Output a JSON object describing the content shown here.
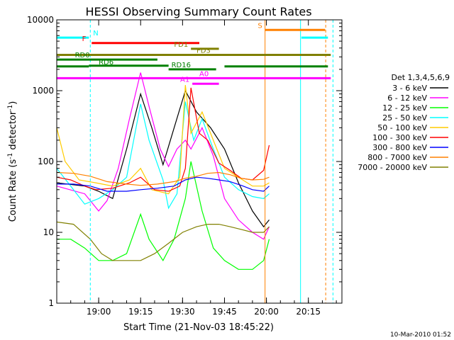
{
  "chart_data": {
    "type": "line",
    "title": "HESSI Observing Summary Count Rates",
    "xlabel": "Start Time (21-Nov-03 18:45:22)",
    "ylabel_main": "Count Rate (s",
    "ylabel_sup": "-1",
    "ylabel_mid": " detector",
    "ylabel_sup2": "-1",
    "ylabel_end": ")",
    "yscale": "log",
    "xlim": [
      0,
      102
    ],
    "ylim": [
      1,
      10000
    ],
    "x_unit": "minutes since 18:45",
    "x_ticks": [
      {
        "x": 15,
        "label": "19:00"
      },
      {
        "x": 30,
        "label": "19:15"
      },
      {
        "x": 45,
        "label": "19:30"
      },
      {
        "x": 60,
        "label": "19:45"
      },
      {
        "x": 75,
        "label": "20:00"
      },
      {
        "x": 90,
        "label": "20:15"
      }
    ],
    "y_ticks": [
      {
        "y": 1,
        "label": "1"
      },
      {
        "y": 10,
        "label": "10"
      },
      {
        "y": 100,
        "label": "100"
      },
      {
        "y": 1000,
        "label": "1000"
      },
      {
        "y": 10000,
        "label": "10000"
      }
    ],
    "legend_title": "Det 1,3,4,5,6,9",
    "legend_position": "right",
    "series": [
      {
        "name": "3 - 6 keV",
        "color": "#000000",
        "points": [
          [
            0,
            50
          ],
          [
            10,
            45
          ],
          [
            15,
            38
          ],
          [
            20,
            30
          ],
          [
            25,
            150
          ],
          [
            30,
            900
          ],
          [
            34,
            300
          ],
          [
            38,
            90
          ],
          [
            42,
            300
          ],
          [
            46,
            1000
          ],
          [
            50,
            500
          ],
          [
            55,
            300
          ],
          [
            60,
            150
          ],
          [
            65,
            50
          ],
          [
            70,
            20
          ],
          [
            74,
            12
          ],
          [
            76,
            15
          ]
        ]
      },
      {
        "name": "6 - 12 keV",
        "color": "#ff00ff",
        "points": [
          [
            0,
            45
          ],
          [
            10,
            35
          ],
          [
            15,
            20
          ],
          [
            18,
            28
          ],
          [
            22,
            80
          ],
          [
            26,
            400
          ],
          [
            30,
            1800
          ],
          [
            33,
            600
          ],
          [
            37,
            150
          ],
          [
            40,
            85
          ],
          [
            43,
            150
          ],
          [
            46,
            200
          ],
          [
            48,
            150
          ],
          [
            52,
            300
          ],
          [
            56,
            120
          ],
          [
            60,
            30
          ],
          [
            65,
            15
          ],
          [
            70,
            10
          ],
          [
            74,
            8
          ],
          [
            76,
            12
          ]
        ]
      },
      {
        "name": "12 - 25 keV",
        "color": "#00ff00",
        "points": [
          [
            0,
            8
          ],
          [
            5,
            8
          ],
          [
            10,
            6
          ],
          [
            15,
            4
          ],
          [
            20,
            4
          ],
          [
            25,
            5
          ],
          [
            30,
            18
          ],
          [
            33,
            8
          ],
          [
            38,
            4
          ],
          [
            42,
            8
          ],
          [
            46,
            30
          ],
          [
            48,
            100
          ],
          [
            52,
            20
          ],
          [
            56,
            6
          ],
          [
            60,
            4
          ],
          [
            65,
            3
          ],
          [
            70,
            3
          ],
          [
            74,
            4
          ],
          [
            76,
            8
          ]
        ]
      },
      {
        "name": "25 - 50 keV",
        "color": "#00ffff",
        "points": [
          [
            0,
            80
          ],
          [
            5,
            45
          ],
          [
            10,
            25
          ],
          [
            15,
            30
          ],
          [
            20,
            40
          ],
          [
            25,
            60
          ],
          [
            30,
            650
          ],
          [
            33,
            200
          ],
          [
            38,
            55
          ],
          [
            40,
            22
          ],
          [
            43,
            35
          ],
          [
            46,
            700
          ],
          [
            49,
            200
          ],
          [
            52,
            400
          ],
          [
            56,
            150
          ],
          [
            60,
            60
          ],
          [
            65,
            40
          ],
          [
            70,
            32
          ],
          [
            74,
            30
          ],
          [
            76,
            35
          ]
        ]
      },
      {
        "name": "50 - 100 keV",
        "color": "#ffcc00",
        "points": [
          [
            0,
            300
          ],
          [
            3,
            100
          ],
          [
            8,
            55
          ],
          [
            14,
            50
          ],
          [
            20,
            45
          ],
          [
            26,
            55
          ],
          [
            30,
            80
          ],
          [
            34,
            40
          ],
          [
            40,
            35
          ],
          [
            44,
            60
          ],
          [
            46,
            1200
          ],
          [
            48,
            250
          ],
          [
            52,
            500
          ],
          [
            56,
            200
          ],
          [
            60,
            80
          ],
          [
            65,
            60
          ],
          [
            70,
            45
          ],
          [
            74,
            45
          ],
          [
            76,
            50
          ]
        ]
      },
      {
        "name": "100 - 300 keV",
        "color": "#ff0000",
        "points": [
          [
            0,
            60
          ],
          [
            5,
            55
          ],
          [
            10,
            45
          ],
          [
            14,
            40
          ],
          [
            20,
            42
          ],
          [
            26,
            50
          ],
          [
            30,
            60
          ],
          [
            35,
            40
          ],
          [
            40,
            38
          ],
          [
            44,
            45
          ],
          [
            46,
            80
          ],
          [
            48,
            1100
          ],
          [
            51,
            250
          ],
          [
            54,
            200
          ],
          [
            58,
            95
          ],
          [
            62,
            75
          ],
          [
            66,
            58
          ],
          [
            70,
            55
          ],
          [
            74,
            75
          ],
          [
            76,
            170
          ]
        ]
      },
      {
        "name": "300 - 800 keV",
        "color": "#0000ff",
        "points": [
          [
            0,
            48
          ],
          [
            6,
            48
          ],
          [
            12,
            45
          ],
          [
            18,
            38
          ],
          [
            25,
            38
          ],
          [
            30,
            40
          ],
          [
            36,
            42
          ],
          [
            42,
            45
          ],
          [
            46,
            55
          ],
          [
            50,
            60
          ],
          [
            54,
            58
          ],
          [
            58,
            55
          ],
          [
            62,
            52
          ],
          [
            66,
            46
          ],
          [
            70,
            40
          ],
          [
            74,
            38
          ],
          [
            76,
            45
          ]
        ]
      },
      {
        "name": "800 - 7000 keV",
        "color": "#ff8000",
        "points": [
          [
            0,
            70
          ],
          [
            6,
            68
          ],
          [
            12,
            62
          ],
          [
            18,
            52
          ],
          [
            25,
            48
          ],
          [
            30,
            46
          ],
          [
            36,
            48
          ],
          [
            42,
            52
          ],
          [
            46,
            58
          ],
          [
            50,
            62
          ],
          [
            54,
            68
          ],
          [
            58,
            70
          ],
          [
            62,
            65
          ],
          [
            66,
            58
          ],
          [
            70,
            55
          ],
          [
            74,
            56
          ],
          [
            76,
            60
          ]
        ]
      },
      {
        "name": "7000 - 20000 keV",
        "color": "#808000",
        "points": [
          [
            0,
            14
          ],
          [
            6,
            13
          ],
          [
            12,
            8
          ],
          [
            16,
            5
          ],
          [
            20,
            4
          ],
          [
            25,
            4
          ],
          [
            30,
            4
          ],
          [
            35,
            5
          ],
          [
            40,
            7
          ],
          [
            45,
            10
          ],
          [
            50,
            12
          ],
          [
            54,
            13
          ],
          [
            58,
            13
          ],
          [
            62,
            12
          ],
          [
            66,
            11
          ],
          [
            70,
            10
          ],
          [
            74,
            10
          ],
          [
            76,
            12
          ]
        ]
      }
    ],
    "annotations": [
      {
        "label": "N",
        "color": "#00ffff",
        "x": 0,
        "x2": 11.5,
        "y": 5600,
        "label_x": 13,
        "anchor": "start"
      },
      {
        "label": "N",
        "color": "#00ffff",
        "x": 87.5,
        "x2": 97,
        "y": 5600
      },
      {
        "label": "F",
        "color": "#ff0000",
        "x": 12.5,
        "x2": 51,
        "y": 4700,
        "label_x": 10.5,
        "anchor": "end"
      },
      {
        "label": "FD1",
        "color": "#808000",
        "x": 48,
        "x2": 58,
        "y": 3900,
        "label_x": 47,
        "anchor": "end"
      },
      {
        "label": "FD3",
        "color": "#808000",
        "x": 0,
        "x2": 98,
        "y": 3200,
        "label_x": 50,
        "anchor": "start"
      },
      {
        "label": "RD0",
        "color": "#008000",
        "x": 0,
        "x2": 36,
        "y": 2750,
        "label_x": 6.5,
        "anchor": "start"
      },
      {
        "label": "RD6",
        "color": "#008000",
        "x": 0,
        "x2": 11.5,
        "y": 2200,
        "label_x": 15,
        "anchor": "start"
      },
      {
        "label": "RD6",
        "color": "#008000",
        "x": 11.5,
        "x2": 40,
        "y": 2250
      },
      {
        "label": "RD16",
        "color": "#008000",
        "x": 40,
        "x2": 57,
        "y": 2000,
        "label_x": 41,
        "anchor": "start"
      },
      {
        "label": "RD6",
        "color": "#008000",
        "x": 60,
        "x2": 97,
        "y": 2200
      },
      {
        "label": "A0",
        "color": "#ff00ff",
        "x": 0,
        "x2": 98,
        "y": 1500,
        "label_x": 51,
        "anchor": "start"
      },
      {
        "label": "A1",
        "color": "#ff00ff",
        "x": 48.5,
        "x2": 58,
        "y": 1250,
        "label_x": 47.5,
        "anchor": "end"
      },
      {
        "label": "S",
        "color": "#ff8000",
        "x": 74.5,
        "x2": 96,
        "y": 7200,
        "label_x": 73.5,
        "anchor": "end"
      }
    ],
    "vlines": [
      {
        "x": 12,
        "color": "#00ffff",
        "dash": "4,3"
      },
      {
        "x": 74.5,
        "color": "#ff8000",
        "dash": ""
      },
      {
        "x": 87.2,
        "color": "#00ffff",
        "dash": ""
      },
      {
        "x": 96.2,
        "color": "#ff8000",
        "dash": "4,3"
      },
      {
        "x": 98.8,
        "color": "#00ffff",
        "dash": "4,3"
      }
    ],
    "timestamp": "10-Mar-2010 01:52"
  }
}
